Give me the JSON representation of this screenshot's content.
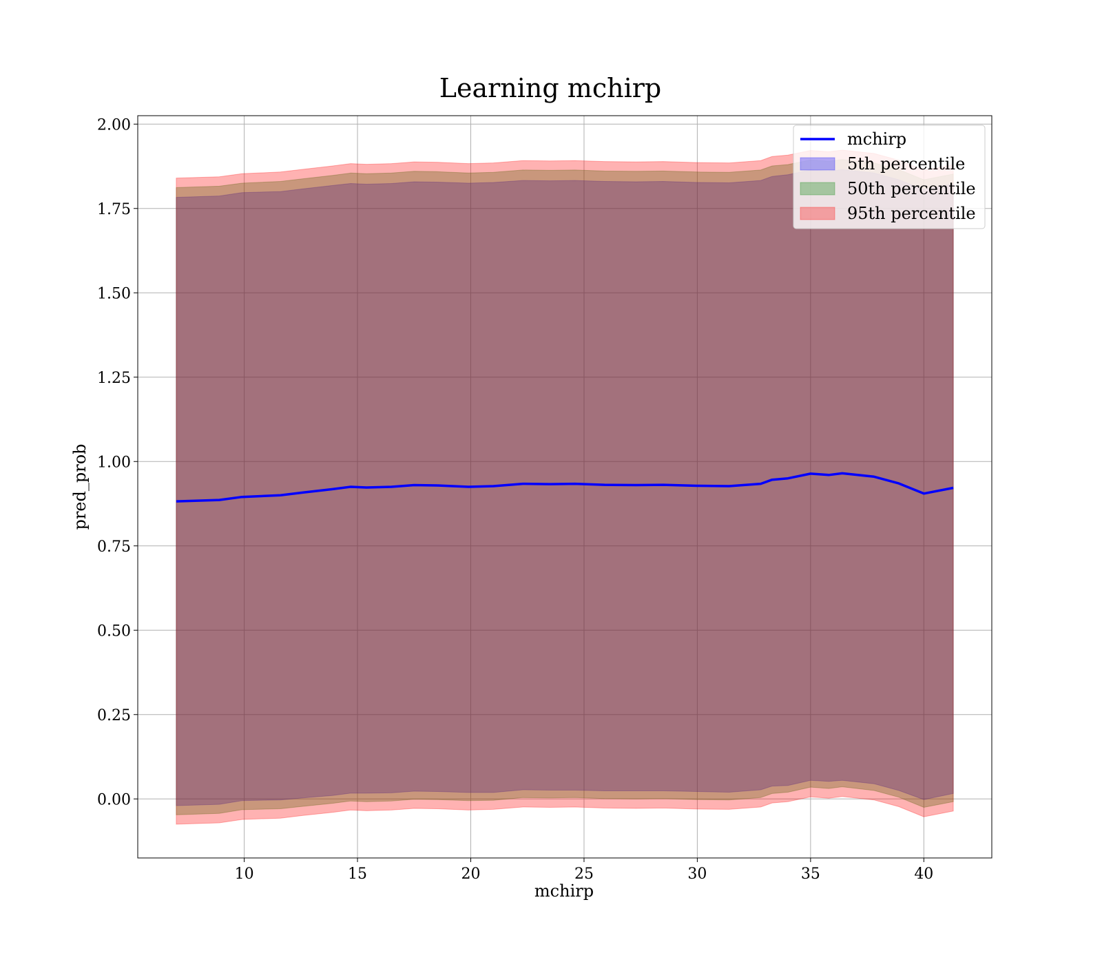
{
  "chart_data": {
    "type": "area",
    "title": "Learning mchirp",
    "xlabel": "mchirp",
    "ylabel": "pred_prob",
    "xlim": [
      5.3,
      43.0
    ],
    "ylim": [
      -0.175,
      2.025
    ],
    "xticks": [
      10,
      15,
      20,
      25,
      30,
      35,
      40
    ],
    "xtick_labels": [
      "10",
      "15",
      "20",
      "25",
      "30",
      "35",
      "40"
    ],
    "yticks": [
      0.0,
      0.25,
      0.5,
      0.75,
      1.0,
      1.25,
      1.5,
      1.75,
      2.0
    ],
    "ytick_labels": [
      "0.00",
      "0.25",
      "0.50",
      "0.75",
      "1.00",
      "1.25",
      "1.50",
      "1.75",
      "2.00"
    ],
    "grid": true,
    "legend_position": "top-right",
    "x": [
      7.0,
      8.9,
      9.9,
      11.6,
      12.6,
      13.9,
      14.7,
      15.4,
      16.5,
      17.5,
      18.5,
      19.9,
      21.0,
      22.3,
      23.5,
      24.6,
      25.9,
      27.3,
      28.5,
      30.0,
      31.4,
      32.8,
      33.3,
      34.0,
      35.0,
      35.8,
      36.4,
      37.8,
      38.9,
      40.0,
      41.3
    ],
    "series": [
      {
        "name": "mchirp",
        "kind": "line",
        "color": "#0000ff",
        "values": [
          0.882,
          0.886,
          0.895,
          0.9,
          0.908,
          0.918,
          0.925,
          0.923,
          0.925,
          0.93,
          0.929,
          0.925,
          0.927,
          0.934,
          0.933,
          0.934,
          0.931,
          0.93,
          0.931,
          0.928,
          0.927,
          0.934,
          0.946,
          0.95,
          0.964,
          0.96,
          0.965,
          0.955,
          0.935,
          0.905,
          0.922
        ]
      },
      {
        "name": "5th percentile",
        "kind": "band",
        "color": "#0000ff",
        "lower": [
          -0.02,
          -0.016,
          -0.005,
          -0.003,
          0.003,
          0.01,
          0.017,
          0.017,
          0.018,
          0.023,
          0.022,
          0.019,
          0.019,
          0.027,
          0.026,
          0.026,
          0.024,
          0.024,
          0.024,
          0.022,
          0.02,
          0.027,
          0.038,
          0.04,
          0.055,
          0.052,
          0.055,
          0.045,
          0.025,
          -0.002,
          0.016
        ],
        "upper": [
          1.783,
          1.787,
          1.797,
          1.8,
          1.808,
          1.818,
          1.824,
          1.822,
          1.824,
          1.829,
          1.828,
          1.825,
          1.827,
          1.833,
          1.832,
          1.833,
          1.83,
          1.829,
          1.83,
          1.827,
          1.826,
          1.833,
          1.845,
          1.85,
          1.864,
          1.86,
          1.865,
          1.855,
          1.835,
          1.806,
          1.823
        ]
      },
      {
        "name": "50th percentile",
        "kind": "band",
        "color": "#008000",
        "lower": [
          -0.047,
          -0.043,
          -0.032,
          -0.029,
          -0.022,
          -0.013,
          -0.006,
          -0.008,
          -0.006,
          -0.001,
          -0.002,
          -0.005,
          -0.004,
          0.004,
          0.003,
          0.004,
          0.001,
          0.0,
          0.001,
          -0.002,
          -0.003,
          0.004,
          0.016,
          0.02,
          0.035,
          0.031,
          0.036,
          0.025,
          0.005,
          -0.025,
          -0.008
        ],
        "upper": [
          1.812,
          1.816,
          1.825,
          1.83,
          1.838,
          1.848,
          1.855,
          1.853,
          1.855,
          1.86,
          1.859,
          1.855,
          1.857,
          1.864,
          1.863,
          1.864,
          1.861,
          1.86,
          1.861,
          1.858,
          1.857,
          1.864,
          1.876,
          1.88,
          1.894,
          1.89,
          1.895,
          1.885,
          1.865,
          1.835,
          1.852
        ]
      },
      {
        "name": "95th percentile",
        "kind": "band",
        "color": "#ff0000",
        "lower": [
          -0.075,
          -0.071,
          -0.061,
          -0.057,
          -0.049,
          -0.04,
          -0.033,
          -0.035,
          -0.033,
          -0.028,
          -0.029,
          -0.033,
          -0.031,
          -0.024,
          -0.025,
          -0.024,
          -0.027,
          -0.028,
          -0.027,
          -0.03,
          -0.031,
          -0.024,
          -0.012,
          -0.008,
          0.006,
          0.002,
          0.007,
          -0.003,
          -0.023,
          -0.053,
          -0.036
        ],
        "upper": [
          1.84,
          1.844,
          1.853,
          1.858,
          1.866,
          1.876,
          1.883,
          1.881,
          1.883,
          1.888,
          1.887,
          1.883,
          1.885,
          1.892,
          1.891,
          1.892,
          1.889,
          1.888,
          1.889,
          1.886,
          1.885,
          1.892,
          1.904,
          1.908,
          1.922,
          1.918,
          1.923,
          1.913,
          1.893,
          1.863,
          1.88
        ]
      }
    ]
  }
}
